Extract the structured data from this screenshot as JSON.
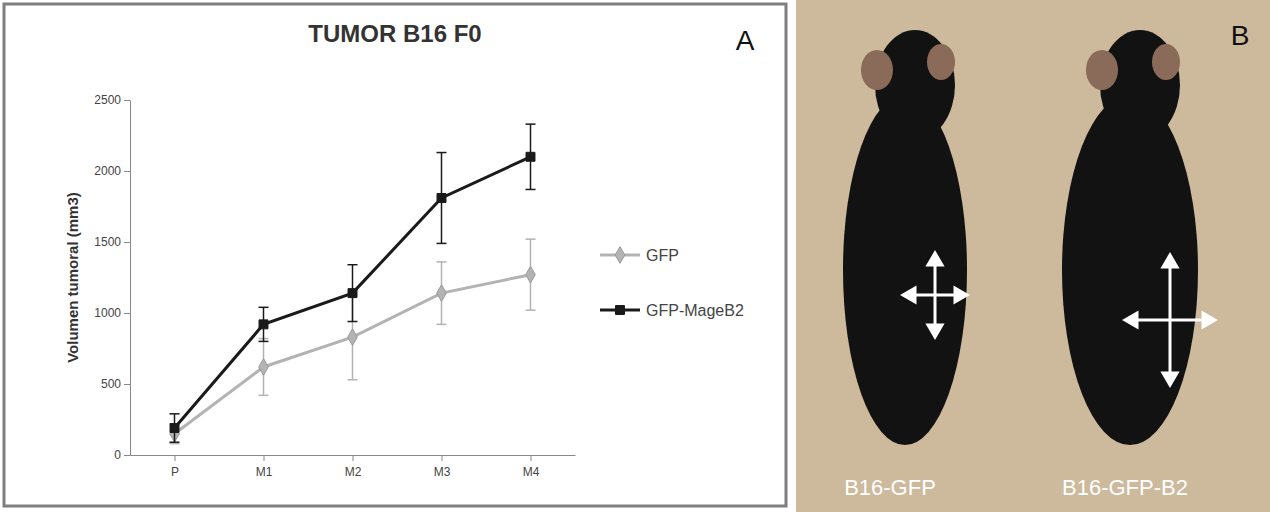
{
  "chart_data": {
    "type": "line",
    "title": "TUMOR B16 F0",
    "y_label": "Volumen tumoral (mm3)",
    "annotations": [
      "A"
    ],
    "categories": [
      "P",
      "M1",
      "M2",
      "M3",
      "M4"
    ],
    "series": [
      {
        "name": "GFP",
        "color": "#b3b3b3",
        "marker": "diamond",
        "values": [
          150,
          620,
          830,
          1140,
          1270
        ],
        "errors": [
          70,
          200,
          300,
          220,
          250
        ]
      },
      {
        "name": "GFP-MageB2",
        "color": "#1a1a1a",
        "marker": "square",
        "values": [
          190,
          920,
          1140,
          1810,
          2100
        ],
        "errors": [
          100,
          120,
          200,
          320,
          230
        ]
      }
    ],
    "ylim": [
      0,
      2500
    ],
    "yticks": [
      0,
      500,
      1000,
      1500,
      2000,
      2500
    ],
    "grid": false,
    "legend": "right"
  },
  "photo": {
    "panel_label": "B",
    "labels": [
      "B16-GFP",
      "B16-GFP-B2"
    ]
  }
}
